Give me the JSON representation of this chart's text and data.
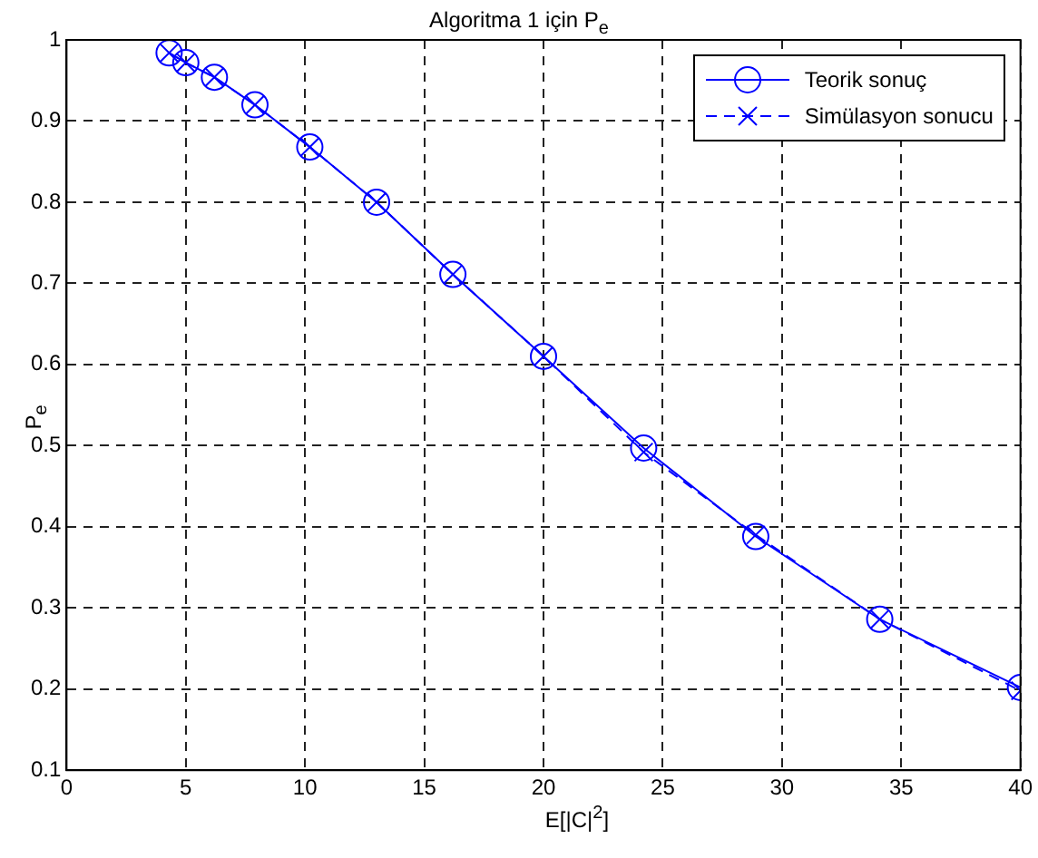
{
  "chart_data": {
    "type": "line",
    "title": "Algoritma 1 için P$_{e}$",
    "xlabel": "E[|C|$^{2}$]",
    "ylabel": "P$_{e}$",
    "xlim": [
      0,
      40
    ],
    "xticks": [
      0,
      5,
      10,
      15,
      20,
      25,
      30,
      35,
      40
    ],
    "ylim": [
      0.1,
      1
    ],
    "yticks": [
      0.1,
      0.2,
      0.3,
      0.4,
      0.5,
      0.6,
      0.7,
      0.8,
      0.9,
      1
    ],
    "grid": true,
    "legend": "top right",
    "series": [
      {
        "name": "Teorik sonuç",
        "color": "#0000ff",
        "marker": "circle",
        "line_style": "solid",
        "x": [
          4.3,
          5.0,
          6.2,
          7.9,
          10.2,
          13.0,
          16.2,
          20.0,
          24.2,
          28.9,
          34.1,
          40.0
        ],
        "values": [
          0.984,
          0.972,
          0.954,
          0.92,
          0.868,
          0.8,
          0.711,
          0.61,
          0.497,
          0.388,
          0.286,
          0.202
        ]
      },
      {
        "name": "Simülasyon sonucu",
        "color": "#0000ff",
        "marker": "cross",
        "line_style": "dashed",
        "x": [
          4.3,
          5.0,
          6.2,
          7.9,
          10.2,
          13.0,
          16.2,
          20.0,
          24.2,
          28.9,
          34.1,
          40.0
        ],
        "values": [
          0.984,
          0.972,
          0.954,
          0.92,
          0.868,
          0.8,
          0.711,
          0.61,
          0.492,
          0.39,
          0.286,
          0.198
        ]
      }
    ]
  }
}
